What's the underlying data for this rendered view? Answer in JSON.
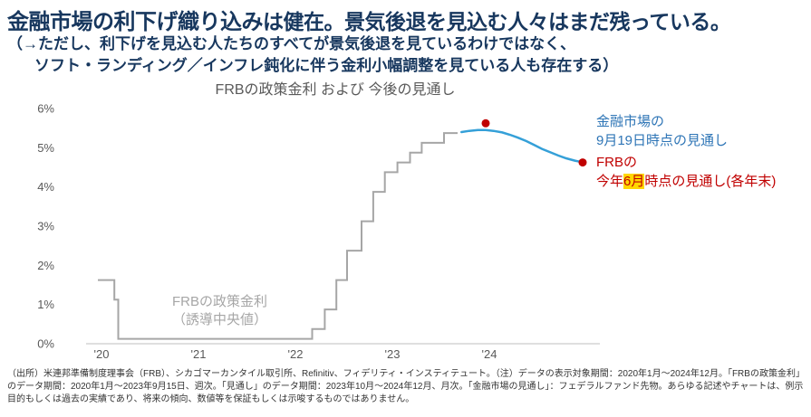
{
  "header": {
    "headline_emphasis": "金融市場の利下げ織り込み",
    "headline_rest": "は健在。景気後退を見込む人々はまだ残っている。",
    "subline1": "（→ただし、利下げを見込む人たちのすべてが景気後退を見ているわけではなく、",
    "subline2": "ソフト・ランディング／インフレ鈍化に伴う金利小幅調整を見ている人も存在する）"
  },
  "chart_data": {
    "type": "line",
    "title": "FRBの政策金利 および 今後の見通し",
    "xlabel": "",
    "ylabel": "",
    "ylim": [
      0,
      6
    ],
    "yticks": [
      0,
      1,
      2,
      3,
      4,
      5,
      6
    ],
    "ytick_labels": [
      "0%",
      "1%",
      "2%",
      "3%",
      "4%",
      "5%",
      "6%"
    ],
    "xticks": [
      2020,
      2021,
      2022,
      2023,
      2024
    ],
    "xtick_labels": [
      "'20",
      "'21",
      "'22",
      "'23",
      "'24"
    ],
    "grid": false,
    "legend_position": "annotations-right",
    "series": [
      {
        "name": "FRBの政策金利（誘導中央値）",
        "type": "step",
        "color": "#a6a6a6",
        "points": [
          [
            2020.0,
            1.625
          ],
          [
            2020.17,
            1.125
          ],
          [
            2020.21,
            0.125
          ],
          [
            2022.21,
            0.375
          ],
          [
            2022.34,
            0.875
          ],
          [
            2022.46,
            1.625
          ],
          [
            2022.57,
            2.375
          ],
          [
            2022.72,
            3.125
          ],
          [
            2022.84,
            3.875
          ],
          [
            2022.96,
            4.375
          ],
          [
            2023.09,
            4.625
          ],
          [
            2023.22,
            4.875
          ],
          [
            2023.34,
            5.125
          ],
          [
            2023.57,
            5.375
          ],
          [
            2023.71,
            5.375
          ]
        ]
      },
      {
        "name": "金融市場の9月19日時点の見通し",
        "type": "line",
        "color": "#35a0d8",
        "points": [
          [
            2023.75,
            5.4
          ],
          [
            2023.83,
            5.43
          ],
          [
            2023.92,
            5.45
          ],
          [
            2024.0,
            5.45
          ],
          [
            2024.08,
            5.43
          ],
          [
            2024.17,
            5.39
          ],
          [
            2024.25,
            5.33
          ],
          [
            2024.33,
            5.26
          ],
          [
            2024.42,
            5.17
          ],
          [
            2024.5,
            5.07
          ],
          [
            2024.58,
            4.97
          ],
          [
            2024.67,
            4.88
          ],
          [
            2024.75,
            4.8
          ],
          [
            2024.83,
            4.73
          ],
          [
            2024.92,
            4.67
          ],
          [
            2025.0,
            4.63
          ]
        ]
      },
      {
        "name": "FRBの今年6月時点の見通し(各年末)",
        "type": "scatter",
        "color": "#c00000",
        "points": [
          [
            2024.0,
            5.625
          ],
          [
            2025.0,
            4.625
          ]
        ]
      }
    ],
    "annotations": {
      "policy_label_line1": "FRBの政策金利",
      "policy_label_line2": "（誘導中央値）",
      "market_label_line1": "金融市場の",
      "market_label_line2": "9月19日時点の見通し",
      "frb_label_line1": "FRBの",
      "frb_label_line2_pre": "今年",
      "frb_label_highlight": "6月",
      "frb_label_line2_post": "時点の見通し(各年末)"
    }
  },
  "footer": {
    "note": "（出所）米連邦準備制度理事会（FRB）、シカゴマーカンタイル取引所、Refinitiv、フィデリティ・インスティテュート。（注）データの表示対象期間：2020年1月～2024年12月。「FRBの政策金利」のデータ期間：2020年1月～2023年9月15日、週次。「見通し」のデータ期間：2023年10月～2024年12月、月次。「金融市場の見通し」：フェデラルファンド先物。あらゆる記述やチャートは、例示目的もしくは過去の実績であり、将来の傾向、数値等を保証もしくは示唆するものではありません。"
  },
  "colors": {
    "headline_navy": "#17375e",
    "policy_line_gray": "#a6a6a6",
    "market_line_blue": "#35a0d8",
    "market_text_blue": "#2e75b6",
    "frb_red": "#c00000",
    "highlight_yellow": "#ffd700",
    "axis_text_gray": "#595959"
  }
}
